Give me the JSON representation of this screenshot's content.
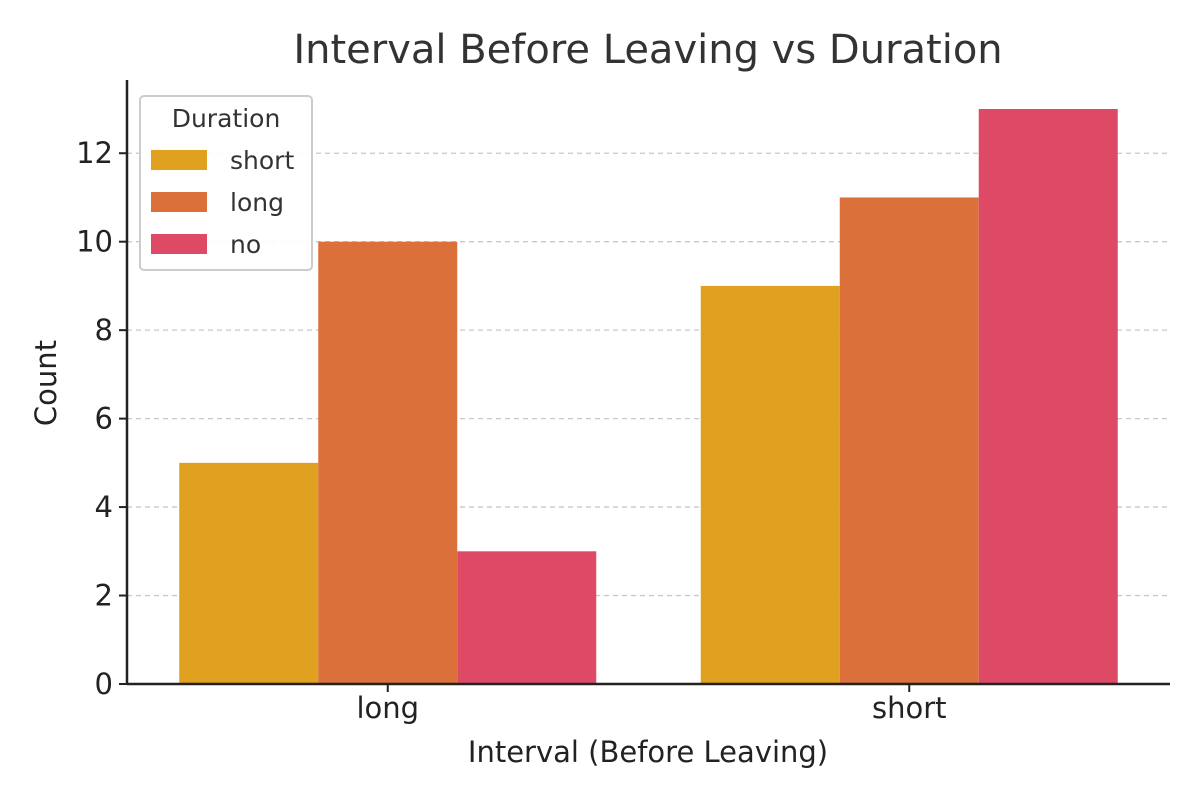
{
  "chart_data": {
    "type": "bar",
    "title": "Interval Before Leaving vs Duration",
    "xlabel": "Interval (Before Leaving)",
    "ylabel": "Count",
    "categories": [
      "long",
      "short"
    ],
    "series": [
      {
        "name": "short",
        "values": [
          5,
          9
        ],
        "color": "#E0A020"
      },
      {
        "name": "long",
        "values": [
          10,
          11
        ],
        "color": "#DB703A"
      },
      {
        "name": "no",
        "values": [
          3,
          13
        ],
        "color": "#DE4A66"
      }
    ],
    "ylim": [
      0,
      13.6
    ],
    "yticks": [
      0,
      2,
      4,
      6,
      8,
      10,
      12
    ],
    "grid": "horizontal-dashed",
    "legend": {
      "title": "Duration",
      "position": "top-left"
    }
  }
}
